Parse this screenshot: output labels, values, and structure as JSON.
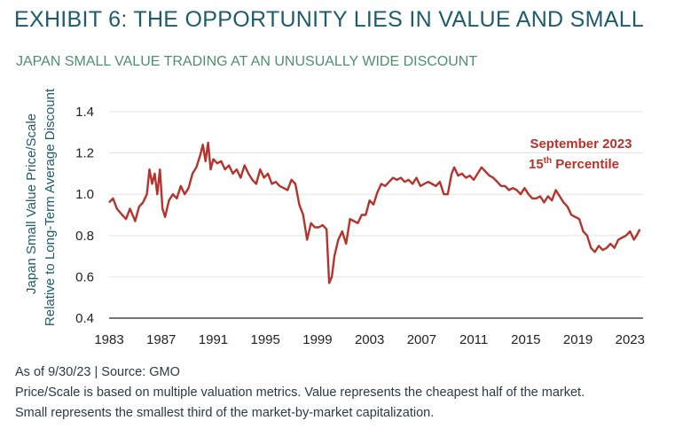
{
  "title": "EXHIBIT 6: THE OPPORTUNITY LIES IN VALUE AND SMALL",
  "subtitle": "JAPAN SMALL VALUE TRADING AT AN UNUSUALLY WIDE DISCOUNT",
  "colors": {
    "title": "#1f5c6b",
    "subtitle": "#4d8f6f",
    "series": "#b5332c",
    "grid": "#e3e3e3"
  },
  "chart_data": {
    "type": "line",
    "ylabel_lines": [
      "Japan Small Value Price/Scale",
      "Relative to Long-Term Average Discount"
    ],
    "xlabel": "",
    "xlim": [
      1983,
      2024
    ],
    "ylim": [
      0.4,
      1.4
    ],
    "xticks": [
      1983,
      1987,
      1991,
      1995,
      1999,
      2003,
      2007,
      2011,
      2015,
      2019,
      2023
    ],
    "yticks": [
      "0.4",
      "0.6",
      "0.8",
      "1.0",
      "1.2",
      "1.4"
    ],
    "grid": true,
    "annotation": {
      "line1": "September 2023",
      "line2_prefix": "15",
      "line2_sup": "th",
      "line2_suffix": " Percentile"
    },
    "series": [
      {
        "x": [
          1983.0,
          1983.3,
          1983.6,
          1984.0,
          1984.3,
          1984.6,
          1985.0,
          1985.3,
          1985.6,
          1985.9,
          1986.1,
          1986.3,
          1986.5,
          1986.7,
          1986.9,
          1987.1,
          1987.3,
          1987.6,
          1987.9,
          1988.2,
          1988.5,
          1988.8,
          1989.1,
          1989.4,
          1989.7,
          1990.0,
          1990.2,
          1990.4,
          1990.6,
          1990.8,
          1991.0,
          1991.3,
          1991.6,
          1991.9,
          1992.2,
          1992.5,
          1992.8,
          1993.1,
          1993.4,
          1993.7,
          1994.0,
          1994.3,
          1994.6,
          1994.9,
          1995.2,
          1995.5,
          1995.8,
          1996.1,
          1996.4,
          1996.7,
          1997.0,
          1997.3,
          1997.6,
          1997.9,
          1998.2,
          1998.5,
          1998.8,
          1999.1,
          1999.4,
          1999.7,
          1999.9,
          2000.1,
          2000.3,
          2000.6,
          2000.9,
          2001.2,
          2001.5,
          2001.8,
          2002.1,
          2002.4,
          2002.7,
          2003.0,
          2003.3,
          2003.6,
          2003.9,
          2004.2,
          2004.5,
          2004.8,
          2005.1,
          2005.4,
          2005.7,
          2006.0,
          2006.3,
          2006.6,
          2006.9,
          2007.2,
          2007.5,
          2007.8,
          2008.1,
          2008.4,
          2008.7,
          2009.0,
          2009.3,
          2009.5,
          2009.8,
          2010.1,
          2010.4,
          2010.7,
          2011.0,
          2011.3,
          2011.6,
          2011.9,
          2012.2,
          2012.5,
          2012.8,
          2013.1,
          2013.4,
          2013.7,
          2014.0,
          2014.3,
          2014.6,
          2014.9,
          2015.2,
          2015.5,
          2015.8,
          2016.1,
          2016.4,
          2016.7,
          2017.0,
          2017.3,
          2017.6,
          2017.9,
          2018.2,
          2018.5,
          2018.8,
          2019.1,
          2019.4,
          2019.7,
          2020.0,
          2020.3,
          2020.6,
          2020.9,
          2021.2,
          2021.5,
          2021.8,
          2022.1,
          2022.4,
          2022.7,
          2023.0,
          2023.3,
          2023.5,
          2023.75
        ],
        "y": [
          0.96,
          0.98,
          0.93,
          0.9,
          0.88,
          0.93,
          0.87,
          0.94,
          0.96,
          1.0,
          1.12,
          1.05,
          1.1,
          1.0,
          1.12,
          0.93,
          0.89,
          0.97,
          1.0,
          0.98,
          1.04,
          1.0,
          1.03,
          1.1,
          1.13,
          1.19,
          1.24,
          1.16,
          1.25,
          1.12,
          1.17,
          1.15,
          1.16,
          1.12,
          1.14,
          1.1,
          1.12,
          1.08,
          1.14,
          1.1,
          1.07,
          1.05,
          1.12,
          1.08,
          1.1,
          1.05,
          1.06,
          1.04,
          1.03,
          1.02,
          1.07,
          1.05,
          0.95,
          0.9,
          0.78,
          0.86,
          0.84,
          0.84,
          0.85,
          0.83,
          0.57,
          0.6,
          0.7,
          0.78,
          0.82,
          0.76,
          0.88,
          0.87,
          0.86,
          0.9,
          0.9,
          0.97,
          0.95,
          1.01,
          1.05,
          1.04,
          1.06,
          1.08,
          1.07,
          1.08,
          1.06,
          1.07,
          1.05,
          1.08,
          1.04,
          1.05,
          1.06,
          1.05,
          1.04,
          1.06,
          1.0,
          1.0,
          1.1,
          1.13,
          1.09,
          1.1,
          1.08,
          1.09,
          1.07,
          1.1,
          1.13,
          1.11,
          1.09,
          1.08,
          1.06,
          1.04,
          1.04,
          1.02,
          1.03,
          1.02,
          1.0,
          1.03,
          1.0,
          0.98,
          0.98,
          0.99,
          0.96,
          0.99,
          0.97,
          1.02,
          0.99,
          0.96,
          0.94,
          0.9,
          0.89,
          0.88,
          0.82,
          0.8,
          0.74,
          0.72,
          0.75,
          0.73,
          0.74,
          0.76,
          0.74,
          0.78,
          0.79,
          0.8,
          0.82,
          0.78,
          0.8,
          0.83
        ]
      }
    ]
  },
  "footer": {
    "line1": "As of 9/30/23 | Source: GMO",
    "line2": "Price/Scale is based on multiple valuation metrics. Value represents the cheapest half of the market.",
    "line3": "Small represents the smallest third of the market-by-market capitalization."
  }
}
